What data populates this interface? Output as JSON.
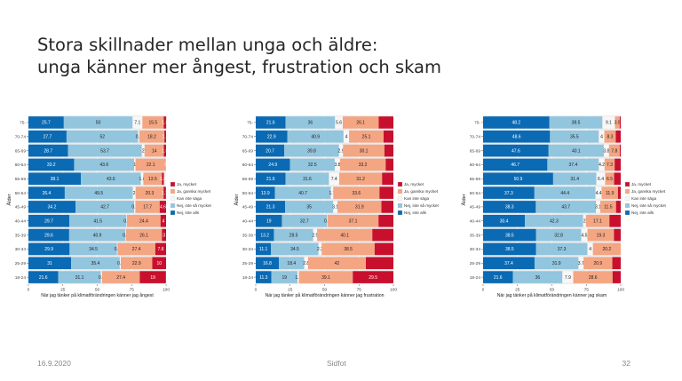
{
  "slide": {
    "title_line1": "Stora skillnader mellan unga och äldre:",
    "title_line2": "unga känner mer ångest, frustration och skam",
    "footer_date": "16.9.2020",
    "footer_center": "Sidfot",
    "page_number": "32"
  },
  "colors": {
    "ja_mycket": "#c8102e",
    "ja_ganska": "#f4a582",
    "kan_inte": "#f7f7f7",
    "nej_inte_sa": "#92c5de",
    "nej_inte_alls": "#0a6ab4",
    "panel_bg": "#ebebeb"
  },
  "chart_data": [
    {
      "type": "bar",
      "orientation": "horizontal-stacked-100",
      "title": "",
      "xlabel": "När jag tänker på klimatförändringen känner jag ångest",
      "ylabel": "Ålder",
      "xlim": [
        0,
        100
      ],
      "xticks": [
        "0",
        "25",
        "50",
        "75",
        "100"
      ],
      "categories": [
        "75-",
        "70-74",
        "65-69",
        "60-64",
        "55-59",
        "50-54",
        "45-49",
        "40-44",
        "35-39",
        "30-34",
        "25-29",
        "18-24"
      ],
      "legend": [
        "Ja, mycket",
        "Ja, ganska mycket",
        "Kan inte säga",
        "Nej, inte så mycket",
        "Nej, inte alls"
      ],
      "series": [
        {
          "name": "Nej, inte alls",
          "values": [
            25.7,
            27.7,
            28.7,
            33.2,
            38.1,
            26.4,
            34.2,
            29.7,
            29.6,
            29.9,
            31,
            21.6
          ]
        },
        {
          "name": "Nej, inte så mycket",
          "values": [
            50,
            52,
            53.7,
            43.6,
            43.6,
            49.5,
            42.7,
            41.5,
            40.9,
            34.5,
            35.4,
            31.1
          ]
        },
        {
          "name": "Kan inte säga",
          "values": [
            7.1,
            0.9,
            2,
            1,
            1.8,
            2,
            0.8,
            0.4,
            0.4,
            0.4,
            0.7,
            0.8
          ]
        },
        {
          "name": "Ja, ganska mycket",
          "values": [
            15.5,
            18.2,
            14,
            22.1,
            13.5,
            20.3,
            17.7,
            24.4,
            26.1,
            27.4,
            22.9,
            27.4
          ]
        },
        {
          "name": "Ja, mycket",
          "values": [
            1.8,
            1.2,
            1.6,
            0,
            1.4,
            1.7,
            4.6,
            4,
            3,
            7.8,
            10,
            19
          ]
        }
      ],
      "labels": [
        [
          "25.7",
          "50",
          "7.1",
          "15.5",
          "1.8"
        ],
        [
          "27.7",
          "52",
          "0.9",
          "18.2",
          "1.2"
        ],
        [
          "28.7",
          "53.7",
          "2",
          "14",
          "1.6"
        ],
        [
          "33.2",
          "43.6",
          "1",
          "22.1",
          "0"
        ],
        [
          "38.1",
          "43.6",
          "1.8",
          "13.5",
          "1.4"
        ],
        [
          "26.4",
          "49.5",
          "2",
          "20.3",
          "1.7"
        ],
        [
          "34.2",
          "42.7",
          "0.8",
          "17.7",
          "4.6"
        ],
        [
          "29.7",
          "41.5",
          "0.4",
          "24.4",
          "4"
        ],
        [
          "29.6",
          "40.9",
          "0.4",
          "26.1",
          "3"
        ],
        [
          "29.9",
          "34.5",
          "0.4",
          "27.4",
          "7.8"
        ],
        [
          "31",
          "35.4",
          "0.7",
          "22.9",
          "10"
        ],
        [
          "21.6",
          "31.1",
          "0.8",
          "27.4",
          "19"
        ]
      ]
    },
    {
      "type": "bar",
      "orientation": "horizontal-stacked-100",
      "title": "",
      "xlabel": "När jag tänker på klimatförändringen känner jag frustration",
      "ylabel": "Ålder",
      "xlim": [
        0,
        100
      ],
      "xticks": [
        "0",
        "25",
        "50",
        "75",
        "100"
      ],
      "categories": [
        "75-",
        "70-74",
        "65-69",
        "60-64",
        "55-59",
        "50-54",
        "45-49",
        "40-44",
        "35-39",
        "30-34",
        "25-29",
        "18-24"
      ],
      "legend": [
        "Ja, mycket",
        "Ja, ganska mycket",
        "Kan inte säga",
        "Nej, inte så mycket",
        "Nej, inte alls"
      ],
      "series": [
        {
          "name": "Nej, inte alls",
          "values": [
            21.6,
            22.9,
            20.7,
            24.9,
            21.6,
            13.9,
            21.3,
            19,
            13.2,
            11.1,
            16.8,
            11.3
          ]
        },
        {
          "name": "Nej, inte så mycket",
          "values": [
            36,
            40.9,
            39.8,
            32.5,
            31.6,
            40.7,
            35,
            32.7,
            28.5,
            34.5,
            18.4,
            19
          ]
        },
        {
          "name": "Kan inte säga",
          "values": [
            5.6,
            4,
            2.9,
            3.8,
            7.4,
            1.7,
            3.1,
            0.4,
            2.9,
            2.3,
            2.8,
            1.1
          ]
        },
        {
          "name": "Ja, ganska mycket",
          "values": [
            26.1,
            25.1,
            30.1,
            33.2,
            31.2,
            33.6,
            31.9,
            37.1,
            40.1,
            38.5,
            42,
            39.1
          ]
        },
        {
          "name": "Ja, mycket",
          "values": [
            10.7,
            7.1,
            6.5,
            5.6,
            8.2,
            10.1,
            8.7,
            10.8,
            15.3,
            13.6,
            20,
            29.5
          ]
        }
      ],
      "labels": [
        [
          "21.6",
          "36",
          "5.6",
          "26.1",
          ""
        ],
        [
          "22.9",
          "40.9",
          "4",
          "25.1",
          ""
        ],
        [
          "20.7",
          "39.8",
          "2.9",
          "30.1",
          ""
        ],
        [
          "24.9",
          "32.5",
          "3.8",
          "33.2",
          ""
        ],
        [
          "21.6",
          "31.6",
          "7.4",
          "31.2",
          ""
        ],
        [
          "13.9",
          "40.7",
          "1.7",
          "33.6",
          ""
        ],
        [
          "21.3",
          "35",
          "3.1",
          "31.9",
          ""
        ],
        [
          "19",
          "32.7",
          "0.4",
          "37.1",
          ""
        ],
        [
          "13.2",
          "28.5",
          "2.9",
          "40.1",
          ""
        ],
        [
          "11.1",
          "34.5",
          "2.3",
          "38.5",
          ""
        ],
        [
          "16.8",
          "18.4",
          "2.8",
          "42",
          ""
        ],
        [
          "11.3",
          "19",
          "1.1",
          "39.1",
          "29.5"
        ]
      ]
    },
    {
      "type": "bar",
      "orientation": "horizontal-stacked-100",
      "title": "",
      "xlabel": "När jag tänker på klimatförändringen känner jag skam",
      "ylabel": "Ålder",
      "xlim": [
        0,
        100
      ],
      "xticks": [
        "0",
        "25",
        "50",
        "75",
        "100"
      ],
      "categories": [
        "75-",
        "70-74",
        "65-69",
        "60-64",
        "55-59",
        "50-54",
        "45-49",
        "40-44",
        "35-39",
        "30-34",
        "25-29",
        "18-24"
      ],
      "legend": [
        "Ja, mycket",
        "Ja, ganska mycket",
        "Kan inte säga",
        "Nej, inte så mycket",
        "Nej, inte alls"
      ],
      "series": [
        {
          "name": "Nej, inte alls",
          "values": [
            48.2,
            48.6,
            47.6,
            46.7,
            50.9,
            37.3,
            38.3,
            30.4,
            38.5,
            38.5,
            37.4,
            21.6
          ]
        },
        {
          "name": "Nej, inte så mycket",
          "values": [
            38.5,
            35.5,
            40.1,
            37.4,
            31.4,
            44.4,
            43.7,
            42.3,
            32.8,
            37.3,
            31.9,
            36
          ]
        },
        {
          "name": "Kan inte säga",
          "values": [
            9.1,
            4,
            3.8,
            4.2,
            6.4,
            4.4,
            3.1,
            2,
            4.5,
            4,
            3.7,
            7.9
          ]
        },
        {
          "name": "Ja, ganska mycket",
          "values": [
            3.5,
            8.3,
            7.8,
            7.3,
            6.5,
            11.9,
            11.5,
            17.1,
            19.3,
            20.2,
            20.9,
            28.6
          ]
        },
        {
          "name": "Ja, mycket",
          "values": [
            0.7,
            3.6,
            0.7,
            4.4,
            4.8,
            2,
            3.4,
            8.2,
            4.9,
            0,
            6.1,
            5.9
          ]
        }
      ],
      "labels": [
        [
          "48.2",
          "38.5",
          "9.1",
          "3.5",
          ""
        ],
        [
          "48.6",
          "35.5",
          "4",
          "8.3",
          ""
        ],
        [
          "47.6",
          "40.1",
          "3.8",
          "7.8",
          ""
        ],
        [
          "46.7",
          "37.4",
          "4.2",
          "7.3",
          ""
        ],
        [
          "50.9",
          "31.4",
          "6.4",
          "6.5",
          ""
        ],
        [
          "37.3",
          "44.4",
          "4.4",
          "11.9",
          ""
        ],
        [
          "38.3",
          "43.7",
          "3.1",
          "11.5",
          ""
        ],
        [
          "30.4",
          "42.3",
          "2",
          "17.1",
          ""
        ],
        [
          "38.5",
          "32.8",
          "4.5",
          "19.3",
          ""
        ],
        [
          "38.5",
          "37.3",
          "4",
          "20.2",
          ""
        ],
        [
          "37.4",
          "31.9",
          "3.7",
          "20.9",
          ""
        ],
        [
          "21.6",
          "36",
          "7.9",
          "28.6",
          ""
        ]
      ]
    }
  ]
}
